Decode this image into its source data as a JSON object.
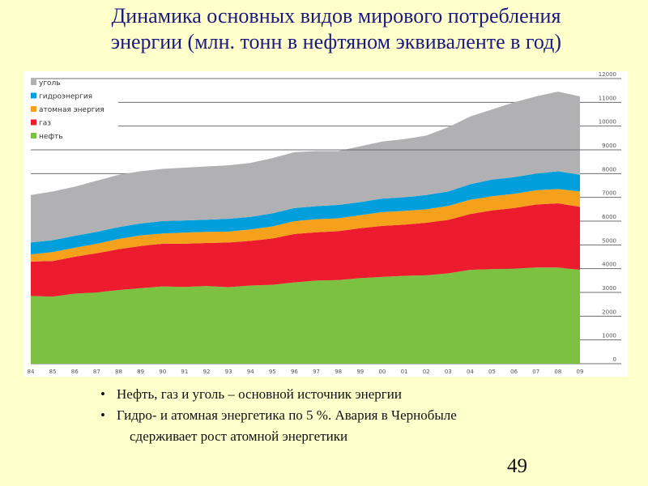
{
  "title": {
    "line1": "Динамика основных видов мирового потребления",
    "line2": "энергии (млн. тонн в нефтяном эквиваленте в год)"
  },
  "chart_data": {
    "type": "area",
    "stacked": true,
    "title": "Динамика основных видов мирового потребления энергии (млн. тонн в нефтяном эквиваленте в год)",
    "xlabel": "",
    "ylabel": "",
    "categories": [
      "84",
      "85",
      "86",
      "87",
      "88",
      "89",
      "90",
      "91",
      "92",
      "93",
      "94",
      "95",
      "96",
      "97",
      "98",
      "99",
      "00",
      "01",
      "02",
      "03",
      "04",
      "05",
      "06",
      "07",
      "08",
      "09"
    ],
    "ylim": [
      0,
      12000
    ],
    "yticks": [
      0,
      1000,
      2000,
      3000,
      4000,
      5000,
      6000,
      7000,
      8000,
      9000,
      10000,
      11000,
      12000
    ],
    "grid": true,
    "legend_position": "top-left",
    "series": [
      {
        "name": "нефть",
        "color": "#7CC142",
        "values": [
          2850,
          2820,
          2950,
          3000,
          3100,
          3180,
          3250,
          3230,
          3270,
          3220,
          3290,
          3320,
          3420,
          3500,
          3520,
          3600,
          3650,
          3700,
          3720,
          3800,
          3950,
          3980,
          4000,
          4050,
          4050,
          3950
        ]
      },
      {
        "name": "газ",
        "color": "#EC1C2E",
        "values": [
          1450,
          1500,
          1550,
          1650,
          1720,
          1770,
          1800,
          1820,
          1810,
          1880,
          1880,
          1950,
          2040,
          2030,
          2060,
          2100,
          2150,
          2150,
          2210,
          2250,
          2350,
          2470,
          2550,
          2650,
          2700,
          2650
        ]
      },
      {
        "name": "атомная энергия",
        "color": "#F6A11C",
        "values": [
          300,
          380,
          380,
          400,
          430,
          450,
          430,
          470,
          470,
          460,
          480,
          510,
          540,
          550,
          540,
          550,
          580,
          580,
          570,
          590,
          600,
          600,
          600,
          600,
          600,
          650
        ]
      },
      {
        "name": "гидроэнергия",
        "color": "#009FDB",
        "values": [
          500,
          500,
          500,
          500,
          500,
          500,
          520,
          510,
          510,
          540,
          530,
          550,
          550,
          550,
          560,
          550,
          570,
          570,
          600,
          610,
          650,
          700,
          700,
          700,
          750,
          700
        ]
      },
      {
        "name": "уголь",
        "color": "#B1B1B4",
        "values": [
          2000,
          2050,
          2070,
          2150,
          2200,
          2200,
          2200,
          2220,
          2240,
          2250,
          2270,
          2320,
          2350,
          2320,
          2270,
          2350,
          2400,
          2450,
          2500,
          2700,
          2850,
          2950,
          3150,
          3250,
          3350,
          3300
        ]
      }
    ],
    "legend_order": [
      "уголь",
      "гидроэнергия",
      "атомная энергия",
      "газ",
      "нефть"
    ]
  },
  "bullets": [
    "Нефть, газ и уголь – основной источник энергии",
    "Гидро- и атомная энергетика по 5 %. Авария в Чернобыле"
  ],
  "bullet_continuation": "сдерживает рост атомной энергетики",
  "page_number": "49"
}
